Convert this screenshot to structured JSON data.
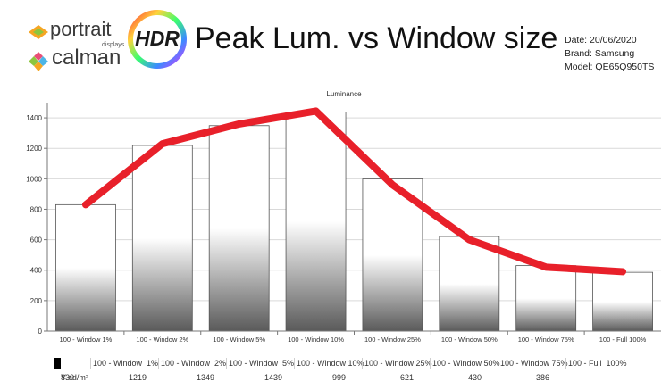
{
  "header": {
    "portrait_word": "portrait",
    "portrait_sub": "displays",
    "calman_word": "calman",
    "hdr_badge": "HDR",
    "title": "Peak Lum. vs Window size",
    "date": "Date: 20/06/2020",
    "brand": "Brand: Samsung",
    "model": "Model: QE65Q950TS"
  },
  "colors": {
    "bar_top": "#ffffff",
    "bar_bottom": "#5a5a5a",
    "trend_line": "#e8202a",
    "axis": "#777777",
    "grid": "#d9d9d9"
  },
  "chart_data": {
    "type": "bar",
    "title": "Luminance",
    "categories": [
      "100 - Window  1%",
      "100 - Window  2%",
      "100 - Window  5%",
      "100 - Window 10%",
      "100 - Window 25%",
      "100 - Window 50%",
      "100 - Window 75%",
      "100 - Full  100%"
    ],
    "values": [
      830,
      1219,
      1349,
      1439,
      999,
      621,
      430,
      386
    ],
    "overlay_line": [
      830,
      1230,
      1360,
      1445,
      960,
      600,
      420,
      390
    ],
    "ylim": [
      0,
      1500
    ],
    "yticks": [
      "0",
      "200",
      "400",
      "600",
      "800",
      "1000",
      "1200",
      "1400"
    ],
    "grid": "horizontal"
  },
  "table": {
    "row_label": "Y cd/m²",
    "headers": [
      "100 - Window  1%",
      "100 - Window  2%",
      "100 - Window  5%",
      "100 - Window 10%",
      "100 - Window 25%",
      "100 - Window 50%",
      "100 - Window 75%",
      "100 - Full  100%"
    ],
    "values": [
      "830",
      "1219",
      "1349",
      "1439",
      "999",
      "621",
      "430",
      "386"
    ]
  }
}
